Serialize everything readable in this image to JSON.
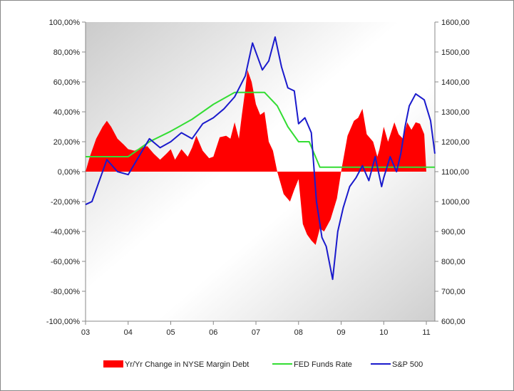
{
  "chart_data": {
    "type": "area+line",
    "title": "",
    "xlabel": "",
    "x_ticks": [
      "03",
      "04",
      "05",
      "06",
      "07",
      "08",
      "09",
      "10",
      "11"
    ],
    "x_range": [
      2003.0,
      2011.2
    ],
    "y_left": {
      "range": [
        -100,
        100
      ],
      "ticks": [
        "100,00%",
        "80,00%",
        "60,00%",
        "40,00%",
        "20,00%",
        "0,00%",
        "-20,00%",
        "-40,00%",
        "-60,00%",
        "-80,00%",
        "-100,00%"
      ],
      "tick_values": [
        100,
        80,
        60,
        40,
        20,
        0,
        -20,
        -40,
        -60,
        -80,
        -100
      ]
    },
    "y_right": {
      "range": [
        600,
        1600
      ],
      "ticks": [
        "1600,00",
        "1500,00",
        "1400,00",
        "1300,00",
        "1200,00",
        "1100,00",
        "1000,00",
        "900,00",
        "800,00",
        "700,00",
        "600,00"
      ],
      "tick_values": [
        1600,
        1500,
        1400,
        1300,
        1200,
        1100,
        1000,
        900,
        800,
        700,
        600
      ]
    },
    "series": [
      {
        "name": "Yr/Yr Change in NYSE Margin Debt",
        "kind": "area",
        "axis": "left",
        "color": "#ff0000",
        "x": [
          2003.0,
          2003.1,
          2003.25,
          2003.4,
          2003.5,
          2003.6,
          2003.75,
          2003.9,
          2004.0,
          2004.15,
          2004.3,
          2004.45,
          2004.6,
          2004.75,
          2004.9,
          2005.0,
          2005.1,
          2005.25,
          2005.4,
          2005.5,
          2005.6,
          2005.75,
          2005.9,
          2006.0,
          2006.15,
          2006.3,
          2006.4,
          2006.5,
          2006.6,
          2006.67,
          2006.75,
          2006.8,
          2006.9,
          2007.0,
          2007.1,
          2007.2,
          2007.3,
          2007.4,
          2007.5,
          2007.65,
          2007.8,
          2007.9,
          2008.0,
          2008.1,
          2008.2,
          2008.3,
          2008.4,
          2008.5,
          2008.6,
          2008.75,
          2008.9,
          2009.0,
          2009.15,
          2009.3,
          2009.4,
          2009.5,
          2009.6,
          2009.75,
          2009.85,
          2009.9,
          2010.0,
          2010.1,
          2010.25,
          2010.35,
          2010.45,
          2010.55,
          2010.65,
          2010.75,
          2010.85,
          2010.95,
          2011.0,
          2011.1,
          2011.2
        ],
        "values": [
          0,
          10,
          22,
          30,
          34,
          30,
          22,
          18,
          15,
          14,
          16,
          17,
          12,
          8,
          12,
          15,
          8,
          15,
          10,
          16,
          24,
          14,
          9,
          10,
          23,
          24,
          22,
          33,
          22,
          38,
          55,
          68,
          60,
          45,
          38,
          40,
          20,
          14,
          0,
          -15,
          -20,
          -12,
          -5,
          -35,
          -42,
          -46,
          -49,
          -38,
          -40,
          -32,
          -18,
          0,
          24,
          34,
          36,
          42,
          25,
          20,
          10,
          15,
          30,
          20,
          33,
          25,
          22,
          33,
          28,
          33,
          32,
          25,
          0,
          0,
          0
        ]
      },
      {
        "name": "FED Funds Rate",
        "kind": "line",
        "axis": "left",
        "color": "#33dd33",
        "x": [
          2003.0,
          2003.5,
          2004.0,
          2004.5,
          2005.0,
          2005.5,
          2006.0,
          2006.5,
          2007.0,
          2007.2,
          2007.5,
          2007.75,
          2008.0,
          2008.25,
          2008.5,
          2009.0,
          2010.0,
          2011.2
        ],
        "values": [
          10,
          10,
          10,
          20,
          27,
          35,
          45,
          53,
          53,
          53,
          44,
          30,
          20,
          20,
          3,
          3,
          3,
          3
        ]
      },
      {
        "name": "S&P 500",
        "kind": "line",
        "axis": "right",
        "color": "#1a1acc",
        "x": [
          2003.0,
          2003.15,
          2003.3,
          2003.5,
          2003.75,
          2004.0,
          2004.25,
          2004.5,
          2004.75,
          2005.0,
          2005.25,
          2005.5,
          2005.75,
          2006.0,
          2006.25,
          2006.5,
          2006.75,
          2006.92,
          2007.15,
          2007.3,
          2007.45,
          2007.6,
          2007.75,
          2007.9,
          2008.0,
          2008.15,
          2008.3,
          2008.42,
          2008.55,
          2008.65,
          2008.8,
          2008.92,
          2009.05,
          2009.2,
          2009.35,
          2009.5,
          2009.65,
          2009.8,
          2009.95,
          2010.0,
          2010.15,
          2010.3,
          2010.4,
          2010.5,
          2010.6,
          2010.75,
          2010.95,
          2011.1,
          2011.2
        ],
        "values": [
          990,
          1000,
          1060,
          1140,
          1100,
          1090,
          1150,
          1210,
          1180,
          1200,
          1230,
          1210,
          1260,
          1280,
          1310,
          1350,
          1420,
          1530,
          1440,
          1470,
          1550,
          1450,
          1380,
          1370,
          1260,
          1280,
          1230,
          1000,
          880,
          850,
          740,
          900,
          980,
          1050,
          1080,
          1120,
          1070,
          1150,
          1050,
          1080,
          1150,
          1100,
          1160,
          1250,
          1320,
          1360,
          1340,
          1270,
          1160
        ]
      }
    ]
  },
  "legend": {
    "items": [
      {
        "label": "Yr/Yr Change in NYSE Margin Debt",
        "color": "#ff0000"
      },
      {
        "label": "FED Funds Rate",
        "color": "#33dd33"
      },
      {
        "label": "S&P 500",
        "color": "#1a1acc"
      }
    ]
  }
}
